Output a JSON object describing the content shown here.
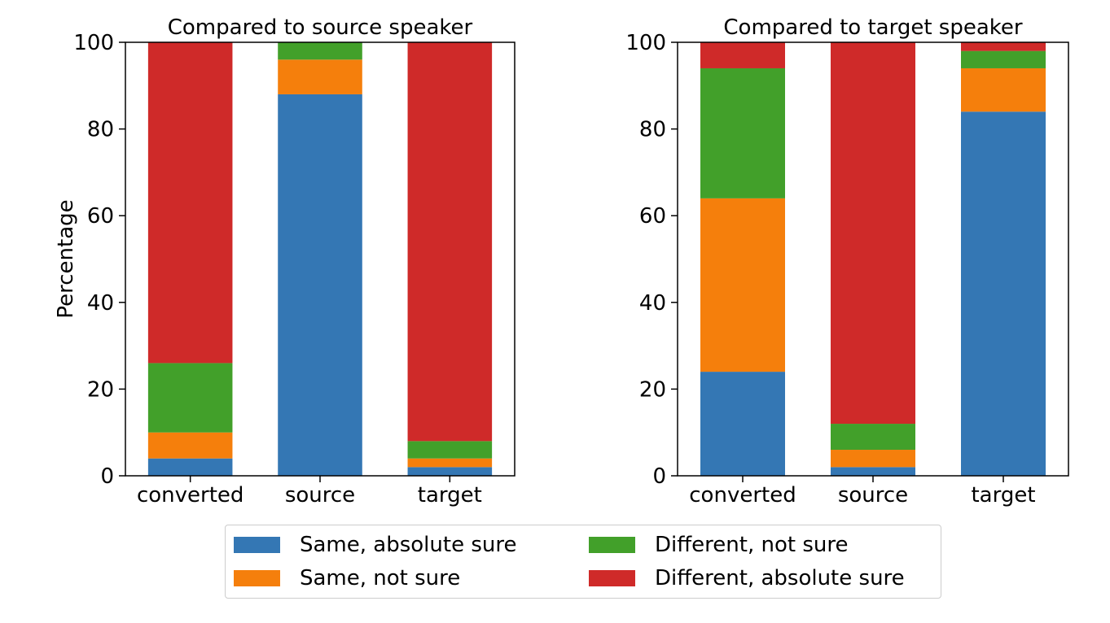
{
  "chart_data": [
    {
      "type": "bar",
      "stacked": true,
      "title": "Compared to source speaker",
      "xlabel": "",
      "ylabel": "Percentage",
      "ylim": [
        0,
        100
      ],
      "yticks": [
        0,
        20,
        40,
        60,
        80,
        100
      ],
      "categories": [
        "converted",
        "source",
        "target"
      ],
      "series": [
        {
          "name": "Same, absolute sure",
          "color": "#3477b4",
          "values": [
            4,
            88,
            2
          ]
        },
        {
          "name": "Same, not sure",
          "color": "#f57f0c",
          "values": [
            6,
            8,
            2
          ]
        },
        {
          "name": "Different, not sure",
          "color": "#42a02a",
          "values": [
            16,
            4,
            4
          ]
        },
        {
          "name": "Different, absolute sure",
          "color": "#cf2a29",
          "values": [
            74,
            0,
            92
          ]
        }
      ]
    },
    {
      "type": "bar",
      "stacked": true,
      "title": "Compared to target speaker",
      "xlabel": "",
      "ylabel": "",
      "ylim": [
        0,
        100
      ],
      "yticks": [
        0,
        20,
        40,
        60,
        80,
        100
      ],
      "categories": [
        "converted",
        "source",
        "target"
      ],
      "series": [
        {
          "name": "Same, absolute sure",
          "color": "#3477b4",
          "values": [
            24,
            2,
            84
          ]
        },
        {
          "name": "Same, not sure",
          "color": "#f57f0c",
          "values": [
            40,
            4,
            10
          ]
        },
        {
          "name": "Different, not sure",
          "color": "#42a02a",
          "values": [
            30,
            6,
            4
          ]
        },
        {
          "name": "Different, absolute sure",
          "color": "#cf2a29",
          "values": [
            6,
            88,
            2
          ]
        }
      ]
    }
  ],
  "legend": {
    "placement": "bottom-center",
    "items": [
      {
        "label": "Same, absolute sure",
        "color": "#3477b4"
      },
      {
        "label": "Same, not sure",
        "color": "#f57f0c"
      },
      {
        "label": "Different, not sure",
        "color": "#42a02a"
      },
      {
        "label": "Different, absolute sure",
        "color": "#cf2a29"
      }
    ]
  }
}
